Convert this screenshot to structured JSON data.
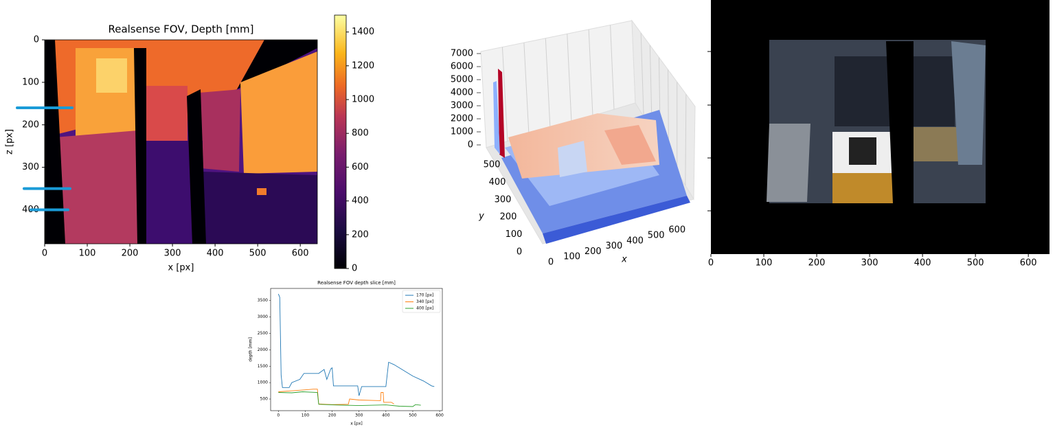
{
  "chart_data": [
    {
      "type": "heatmap",
      "title": "Realsense FOV, Depth [mm]",
      "xlabel": "x [px]",
      "ylabel": "z [px]",
      "xlim": [
        0,
        640
      ],
      "ylim": [
        480,
        0
      ],
      "xticks": [
        0,
        100,
        200,
        300,
        400,
        500,
        600
      ],
      "yticks": [
        0,
        100,
        200,
        300,
        400
      ],
      "clim": [
        0,
        1500
      ],
      "cticks": [
        0,
        200,
        400,
        600,
        800,
        1000,
        1200,
        1400
      ],
      "colormap": "inferno",
      "slice_rows": [
        160,
        350,
        400
      ],
      "slice_color": "#1a9bd7"
    },
    {
      "type": "surface3d",
      "xlabel": "x",
      "ylabel": "y",
      "colormap": "coolwarm",
      "xlim": [
        0,
        640
      ],
      "ylim": [
        0,
        500
      ],
      "zlim": [
        0,
        7000
      ],
      "xticks": [
        0,
        100,
        200,
        300,
        400,
        500,
        600
      ],
      "yticks": [
        0,
        100,
        200,
        300,
        400,
        500
      ],
      "zticks": [
        0,
        1000,
        2000,
        3000,
        4000,
        5000,
        6000,
        7000
      ]
    },
    {
      "type": "image",
      "xlim": [
        0,
        640
      ],
      "xticks": [
        0,
        100,
        200,
        300,
        400,
        500,
        600
      ]
    },
    {
      "type": "line",
      "title": "Realsense FOV depth slice [mm]",
      "xlabel": "x [px]",
      "ylabel": "depth [mm]",
      "xlim": [
        -29,
        610
      ],
      "ylim": [
        145,
        3870
      ],
      "xticks": [
        0,
        100,
        200,
        300,
        400,
        500,
        600
      ],
      "yticks": [
        500,
        1000,
        1500,
        2000,
        2500,
        3000,
        3500
      ],
      "legend": "upper right",
      "series": [
        {
          "name": "170 [px]",
          "color": "#1f77b4",
          "x": [
            0,
            5,
            10,
            15,
            40,
            50,
            80,
            95,
            150,
            170,
            180,
            195,
            200,
            205,
            295,
            300,
            310,
            400,
            410,
            430,
            460,
            500,
            540,
            570,
            580
          ],
          "values": [
            3700,
            3600,
            1230,
            850,
            850,
            1000,
            1100,
            1280,
            1280,
            1400,
            1100,
            1420,
            1450,
            900,
            900,
            600,
            880,
            880,
            1620,
            1550,
            1400,
            1200,
            1050,
            900,
            880
          ]
        },
        {
          "name": "340 [px]",
          "color": "#ff7f0e",
          "x": [
            0,
            50,
            100,
            130,
            145,
            150,
            200,
            260,
            265,
            300,
            380,
            382,
            390,
            392,
            420,
            430
          ],
          "values": [
            720,
            750,
            780,
            800,
            800,
            350,
            330,
            340,
            500,
            470,
            450,
            700,
            700,
            400,
            400,
            350
          ]
        },
        {
          "name": "400 [px]",
          "color": "#2ca02c",
          "x": [
            0,
            50,
            90,
            145,
            150,
            200,
            300,
            400,
            450,
            500,
            510,
            530
          ],
          "values": [
            700,
            690,
            720,
            700,
            340,
            320,
            300,
            320,
            280,
            270,
            330,
            310
          ]
        }
      ]
    }
  ]
}
